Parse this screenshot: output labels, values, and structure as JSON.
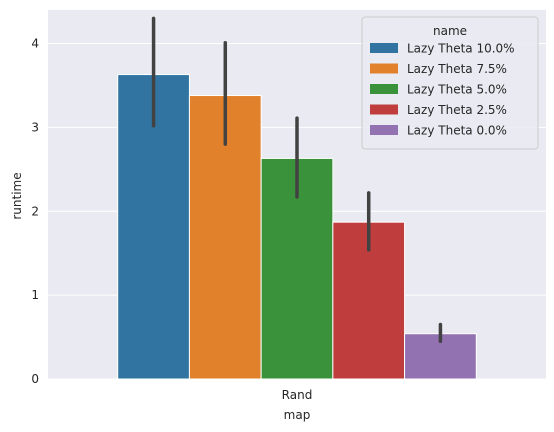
{
  "chart_data": {
    "type": "bar",
    "categories": [
      "Rand"
    ],
    "xlabel": "map",
    "ylabel": "runtime",
    "ylim": [
      0,
      4.4
    ],
    "yticks": [
      0,
      1,
      2,
      3,
      4
    ],
    "grid": true,
    "legend": {
      "title": "name",
      "placement": "top-right"
    },
    "series": [
      {
        "name": "Lazy Theta 10.0%",
        "color": "#3274a1",
        "values": [
          3.63
        ],
        "ci": [
          [
            3.02,
            4.3
          ]
        ]
      },
      {
        "name": "Lazy Theta 7.5%",
        "color": "#e1812c",
        "values": [
          3.38
        ],
        "ci": [
          [
            2.8,
            4.01
          ]
        ]
      },
      {
        "name": "Lazy Theta 5.0%",
        "color": "#3a923a",
        "values": [
          2.63
        ],
        "ci": [
          [
            2.17,
            3.11
          ]
        ]
      },
      {
        "name": "Lazy Theta 2.5%",
        "color": "#c03d3e",
        "values": [
          1.87
        ],
        "ci": [
          [
            1.54,
            2.22
          ]
        ]
      },
      {
        "name": "Lazy Theta 0.0%",
        "color": "#9372b2",
        "values": [
          0.54
        ],
        "ci": [
          [
            0.45,
            0.65
          ]
        ]
      }
    ]
  }
}
